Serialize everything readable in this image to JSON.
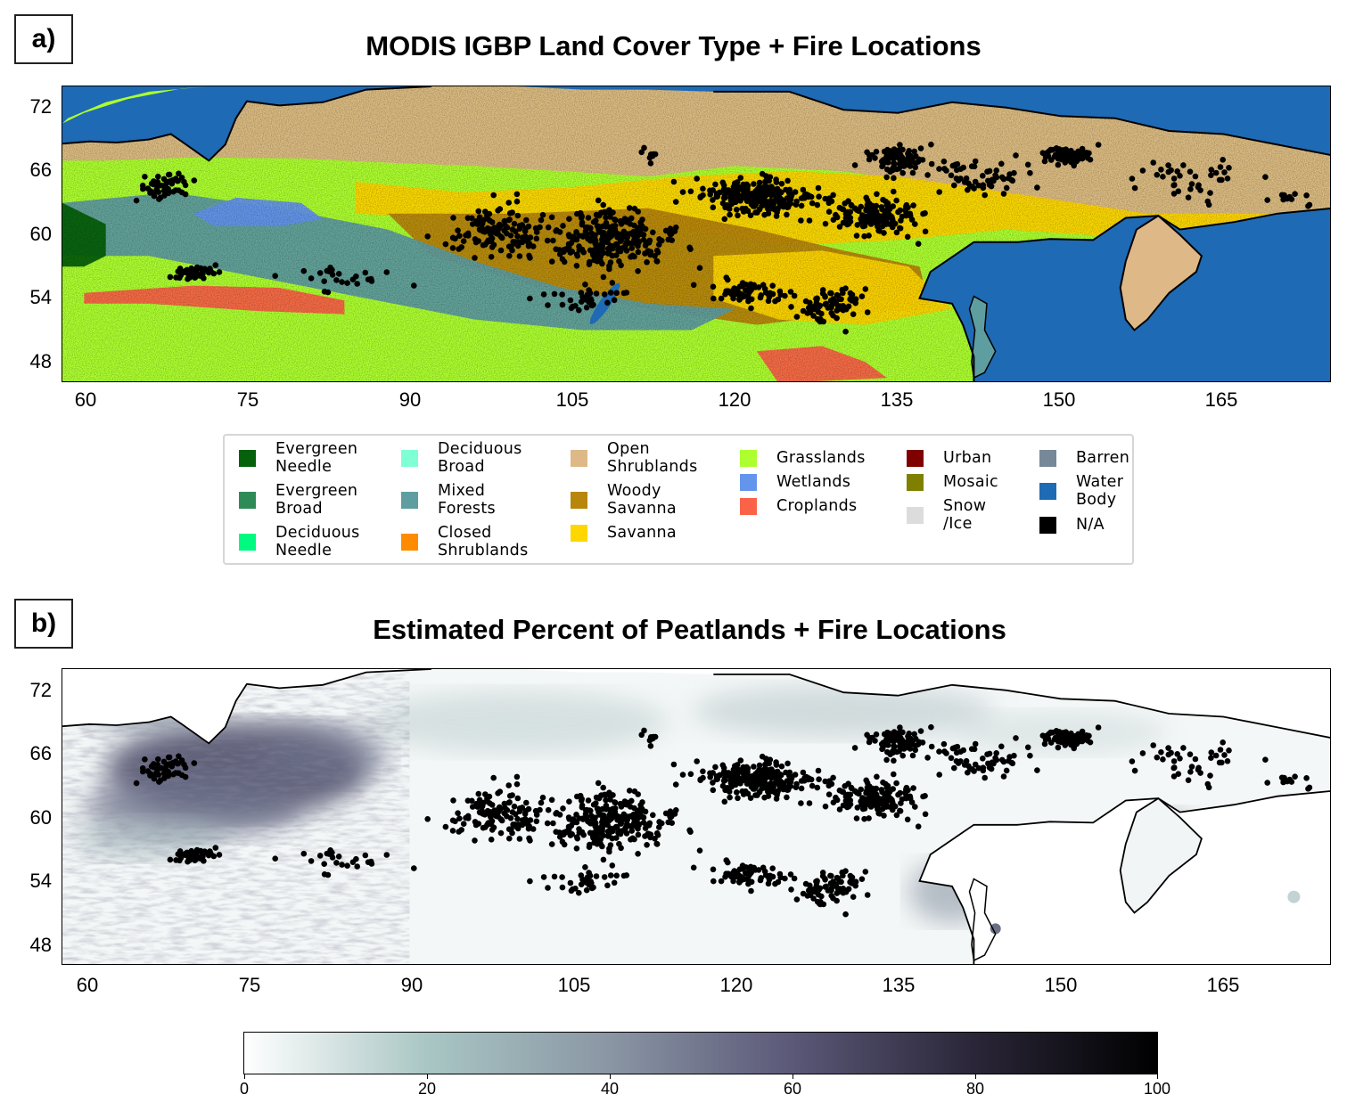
{
  "panel_a": {
    "label": "a)",
    "title": "MODIS IGBP Land Cover Type + Fire Locations",
    "lat_ticks": [
      "72",
      "66",
      "60",
      "54",
      "48"
    ],
    "lon_ticks": [
      "60",
      "75",
      "90",
      "105",
      "120",
      "135",
      "150",
      "165"
    ],
    "lon_range": [
      58,
      175
    ],
    "lat_range": [
      46,
      74
    ],
    "legend": [
      {
        "label": "Evergreen\nNeedle",
        "color": "#05610a"
      },
      {
        "label": "Evergreen\nBroad",
        "color": "#2e8b57"
      },
      {
        "label": "Deciduous\nNeedle",
        "color": "#00fa7f"
      },
      {
        "label": "Deciduous\nBroad",
        "color": "#7fffd4"
      },
      {
        "label": "Mixed\nForests",
        "color": "#5f9ea0"
      },
      {
        "label": "Closed\nShrublands",
        "color": "#ff8c00"
      },
      {
        "label": "Open\nShrublands",
        "color": "#deb887"
      },
      {
        "label": "Woody\nSavanna",
        "color": "#b8860b"
      },
      {
        "label": "Savanna",
        "color": "#ffd700"
      },
      {
        "label": "Grasslands",
        "color": "#adff2f"
      },
      {
        "label": "Wetlands",
        "color": "#6495ed"
      },
      {
        "label": "Croplands",
        "color": "#fa6347"
      },
      {
        "label": "Urban",
        "color": "#800000"
      },
      {
        "label": "Mosaic",
        "color": "#808000"
      },
      {
        "label": "Snow\n/Ice",
        "color": "#dcdcdc"
      },
      {
        "label": "Barren",
        "color": "#778899"
      },
      {
        "label": "Water\nBody",
        "color": "#1e6ab4"
      },
      {
        "label": "N/A",
        "color": "#000000"
      }
    ]
  },
  "panel_b": {
    "label": "b)",
    "title": "Estimated Percent of Peatlands + Fire Locations",
    "lat_ticks": [
      "72",
      "66",
      "60",
      "54",
      "48"
    ],
    "lon_ticks": [
      "60",
      "75",
      "90",
      "105",
      "120",
      "135",
      "150",
      "165"
    ],
    "colorbar": {
      "ticks": [
        "0",
        "20",
        "40",
        "60",
        "80",
        "100"
      ],
      "range": [
        0,
        100
      ],
      "colors": [
        "#ffffff",
        "#a9c6c4",
        "#8a96a4",
        "#5b5878",
        "#2a2638",
        "#000000"
      ]
    }
  },
  "fire_clusters": [
    {
      "lon": 108,
      "lat": 59.5,
      "spread_lon": 5.5,
      "spread_lat": 2.5,
      "n": 260
    },
    {
      "lon": 98,
      "lat": 60.5,
      "spread_lon": 4,
      "spread_lat": 2,
      "n": 120
    },
    {
      "lon": 122,
      "lat": 63.5,
      "spread_lon": 4.5,
      "spread_lat": 1.6,
      "n": 260
    },
    {
      "lon": 133,
      "lat": 61.8,
      "spread_lon": 3.5,
      "spread_lat": 1.6,
      "n": 160
    },
    {
      "lon": 135,
      "lat": 67.2,
      "spread_lon": 2.5,
      "spread_lat": 1.2,
      "n": 90
    },
    {
      "lon": 150.5,
      "lat": 67.5,
      "spread_lon": 2,
      "spread_lat": 1,
      "n": 70
    },
    {
      "lon": 67,
      "lat": 64.5,
      "spread_lon": 2.5,
      "spread_lat": 1.2,
      "n": 50
    },
    {
      "lon": 70,
      "lat": 56.5,
      "spread_lon": 1.8,
      "spread_lat": 0.7,
      "n": 50
    },
    {
      "lon": 121,
      "lat": 54.5,
      "spread_lon": 3,
      "spread_lat": 1,
      "n": 60
    },
    {
      "lon": 129,
      "lat": 53.5,
      "spread_lon": 3,
      "spread_lat": 1.6,
      "n": 80
    },
    {
      "lon": 143,
      "lat": 65.5,
      "spread_lon": 5,
      "spread_lat": 1.6,
      "n": 60
    },
    {
      "lon": 162,
      "lat": 65.5,
      "spread_lon": 5,
      "spread_lat": 1.5,
      "n": 40
    },
    {
      "lon": 106,
      "lat": 54,
      "spread_lon": 3.5,
      "spread_lat": 1.2,
      "n": 35
    },
    {
      "lon": 84,
      "lat": 56,
      "spread_lon": 4,
      "spread_lat": 1,
      "n": 25
    },
    {
      "lon": 112,
      "lat": 67.5,
      "spread_lon": 1,
      "spread_lat": 0.6,
      "n": 8
    },
    {
      "lon": 172,
      "lat": 63.5,
      "spread_lon": 3,
      "spread_lat": 1,
      "n": 12
    }
  ]
}
